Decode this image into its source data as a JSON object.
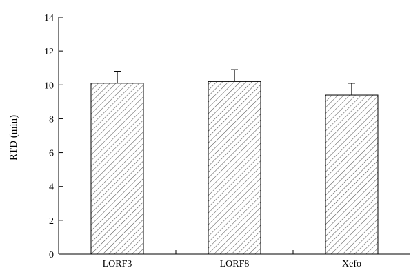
{
  "chart_data": {
    "type": "bar",
    "title": "",
    "xlabel": "",
    "ylabel": "RTD (min)",
    "categories": [
      "LORF3",
      "LORF8",
      "Xefo"
    ],
    "values": [
      10.1,
      10.2,
      9.4
    ],
    "error_upper": [
      0.7,
      0.7,
      0.7
    ],
    "ylim": [
      0,
      14
    ],
    "yticks": [
      "0",
      "2",
      "4",
      "6",
      "8",
      "10",
      "12",
      "14"
    ],
    "grid": false,
    "legend": "none",
    "bar_fill": "diagonal-hatch",
    "colors": {
      "bar_stroke": "#000000",
      "hatch": "#555555",
      "axis": "#000000"
    }
  }
}
